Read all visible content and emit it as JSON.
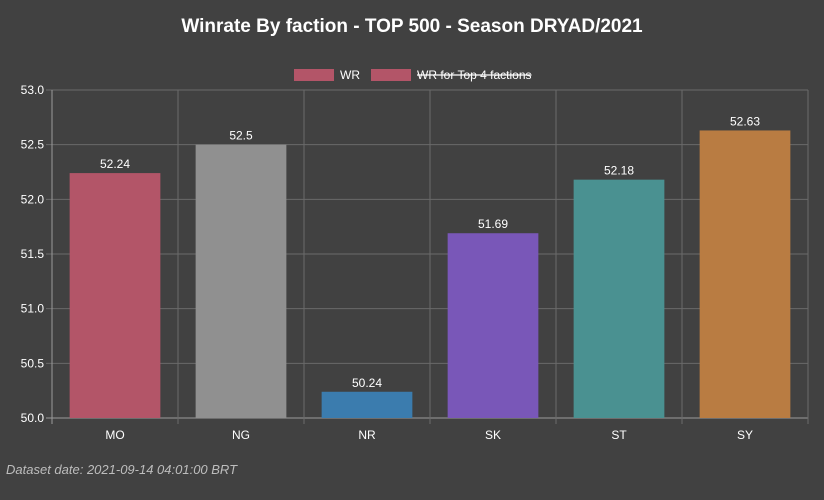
{
  "title": "Winrate By faction - TOP 500 - Season DRYAD/2021",
  "footnote": "Dataset date: 2021-09-14 04:01:00 BRT",
  "legend": [
    {
      "label": "WR",
      "color": "#b35568",
      "hidden": false
    },
    {
      "label": "WR for Top 4 factions",
      "color": "#b35568",
      "hidden": true
    }
  ],
  "chart_data": {
    "type": "bar",
    "categories": [
      "MO",
      "NG",
      "NR",
      "SK",
      "ST",
      "SY"
    ],
    "values": [
      52.24,
      52.5,
      50.24,
      51.69,
      52.18,
      52.63
    ],
    "value_labels": [
      "52.24",
      "52.5",
      "50.24",
      "51.69",
      "52.18",
      "52.63"
    ],
    "colors": [
      "#b35568",
      "#909090",
      "#3b7cae",
      "#7957b8",
      "#4a9191",
      "#b97c42"
    ],
    "ylim": [
      50.0,
      53.0
    ],
    "yticks": [
      "50.0",
      "50.5",
      "51.0",
      "51.5",
      "52.0",
      "52.5",
      "53.0"
    ],
    "grid": true,
    "legend_position": "top"
  }
}
